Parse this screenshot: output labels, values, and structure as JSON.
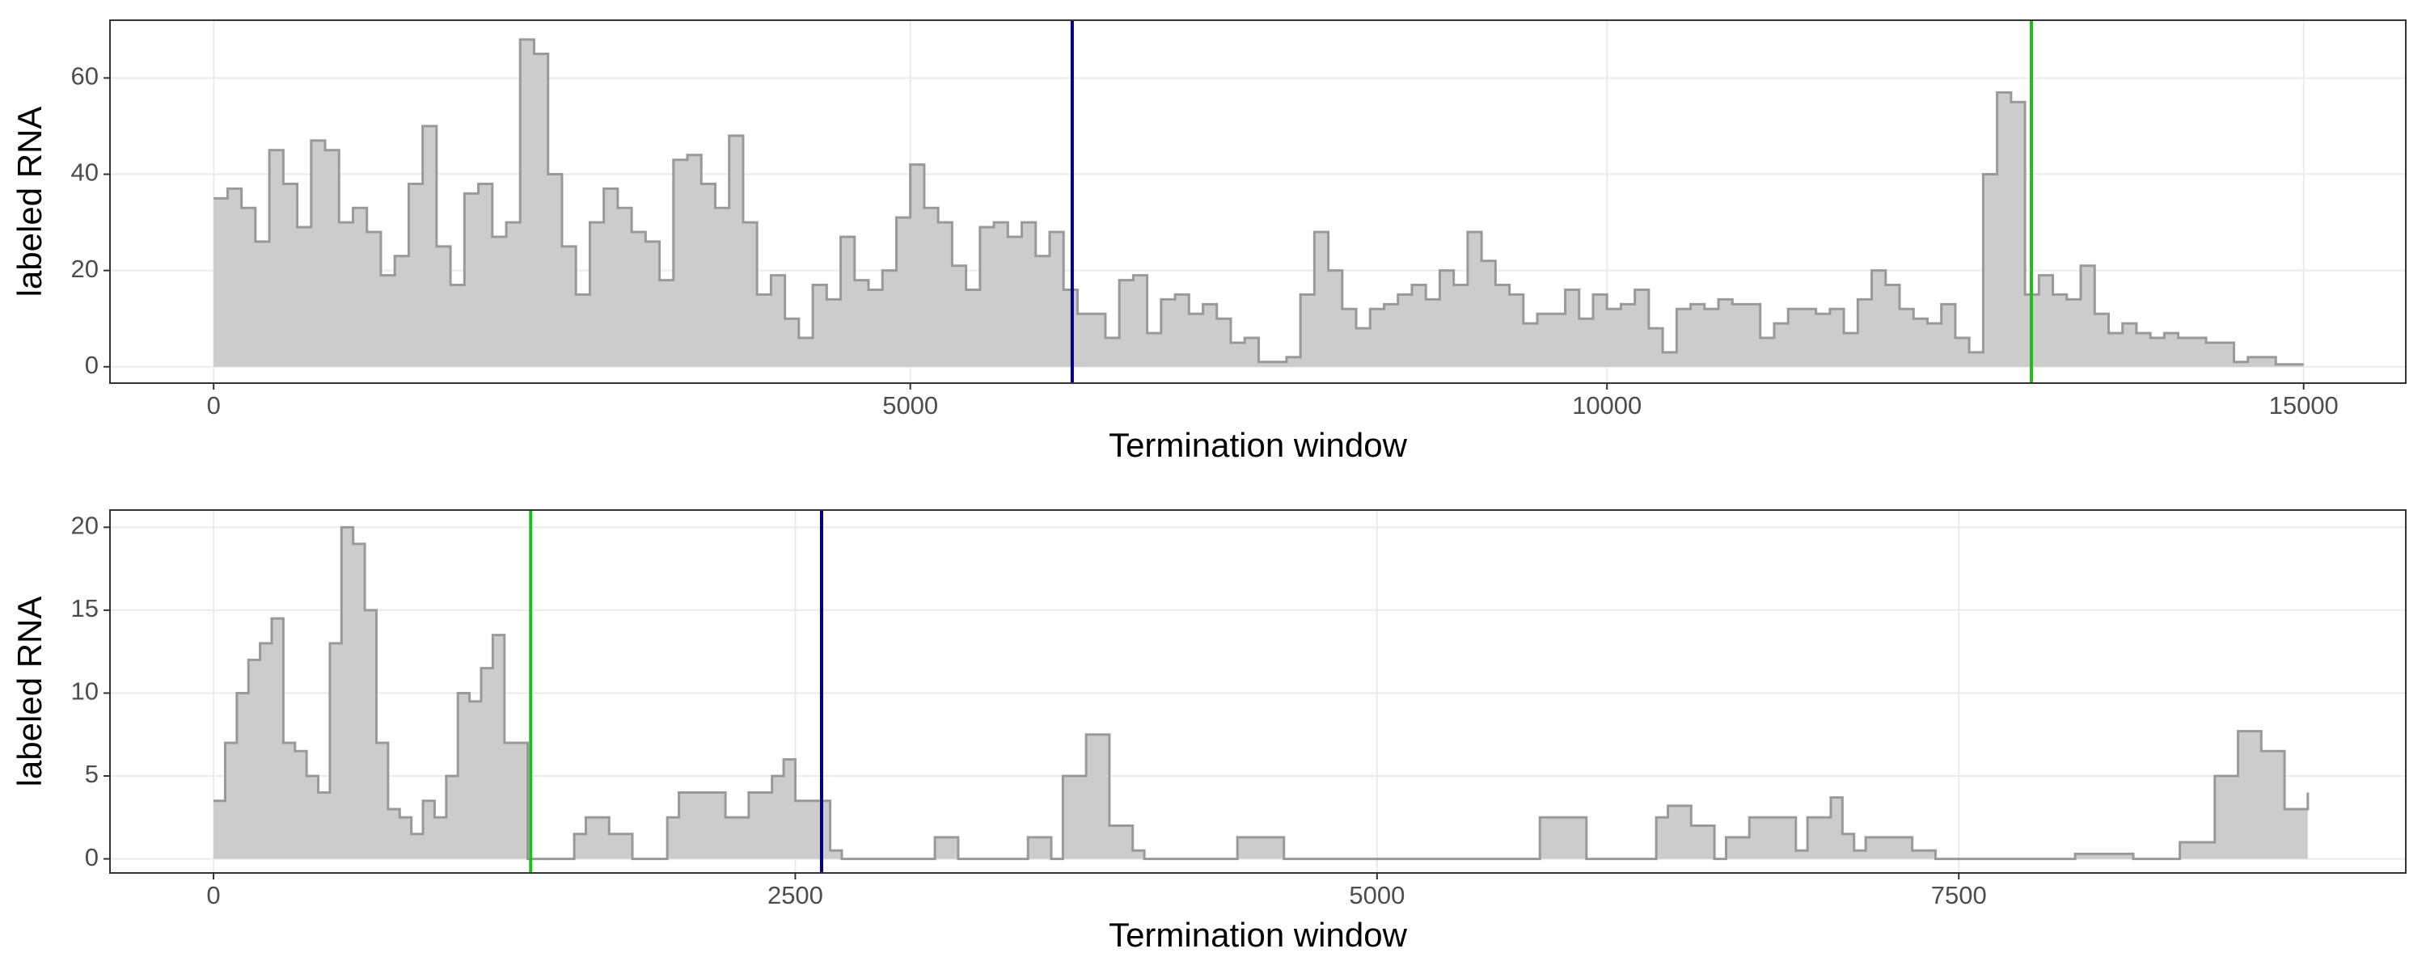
{
  "chart_data": [
    {
      "type": "step-area",
      "ylabel": "labeled RNA",
      "xlabel": "Termination window",
      "fill": "#cccccc",
      "line_color": "#999999",
      "grid": true,
      "xlim": [
        -744,
        15733
      ],
      "ylim": [
        -3.4,
        72
      ],
      "xticks": [
        0,
        5000,
        10000,
        15000
      ],
      "yticks": [
        0,
        20,
        40,
        60
      ],
      "vlines": [
        {
          "value": 6162,
          "color": "#000080"
        },
        {
          "value": 13046,
          "color": "#22bb22"
        }
      ],
      "x": [
        0,
        100,
        200,
        300,
        400,
        500,
        600,
        700,
        800,
        900,
        1000,
        1100,
        1200,
        1300,
        1400,
        1500,
        1600,
        1700,
        1800,
        1900,
        2000,
        2100,
        2200,
        2300,
        2400,
        2500,
        2600,
        2700,
        2800,
        2900,
        3000,
        3100,
        3200,
        3300,
        3400,
        3500,
        3600,
        3700,
        3800,
        3900,
        4000,
        4100,
        4200,
        4300,
        4400,
        4500,
        4600,
        4700,
        4800,
        4900,
        5000,
        5100,
        5200,
        5300,
        5400,
        5500,
        5600,
        5700,
        5800,
        5900,
        6000,
        6100,
        6200,
        6300,
        6400,
        6500,
        6600,
        6700,
        6800,
        6900,
        7000,
        7100,
        7200,
        7300,
        7400,
        7500,
        7600,
        7700,
        7800,
        7900,
        8000,
        8100,
        8200,
        8300,
        8400,
        8500,
        8600,
        8700,
        8800,
        8900,
        9000,
        9100,
        9200,
        9300,
        9400,
        9500,
        9600,
        9700,
        9800,
        9900,
        10000,
        10100,
        10200,
        10300,
        10400,
        10500,
        10600,
        10700,
        10800,
        10900,
        11000,
        11100,
        11200,
        11300,
        11400,
        11500,
        11600,
        11700,
        11800,
        11900,
        12000,
        12100,
        12200,
        12300,
        12400,
        12500,
        12600,
        12700,
        12800,
        12900,
        13000,
        13100,
        13200,
        13300,
        13400,
        13500,
        13600,
        13700,
        13800,
        13900,
        14000,
        14100,
        14200,
        14300,
        14400,
        14500,
        14600,
        14700,
        14800,
        14900,
        15000
      ],
      "values": [
        35,
        37,
        33,
        26,
        45,
        38,
        29,
        47,
        45,
        30,
        33,
        28,
        19,
        23,
        38,
        50,
        25,
        17,
        36,
        38,
        27,
        30,
        68,
        65,
        40,
        25,
        15,
        30,
        37,
        33,
        28,
        26,
        18,
        43,
        44,
        38,
        33,
        48,
        30,
        15,
        19,
        10,
        6,
        17,
        14,
        27,
        18,
        16,
        20,
        31,
        42,
        33,
        30,
        21,
        16,
        29,
        30,
        27,
        30,
        23,
        28,
        16,
        11,
        11,
        6,
        18,
        19,
        7,
        14,
        15,
        11,
        13,
        10,
        5,
        6,
        1,
        1,
        2,
        15,
        28,
        20,
        12,
        8,
        12,
        13,
        15,
        17,
        14,
        20,
        17,
        28,
        22,
        17,
        15,
        9,
        11,
        11,
        16,
        10,
        15,
        12,
        13,
        16,
        8,
        3,
        12,
        13,
        12,
        14,
        13,
        13,
        6,
        9,
        12,
        12,
        11,
        12,
        7,
        14,
        20,
        17,
        12,
        10,
        9,
        13,
        6,
        3,
        40,
        57,
        55,
        15,
        19,
        15,
        14,
        21,
        11,
        7,
        9,
        7,
        6,
        7,
        6,
        6,
        5,
        5,
        1,
        2,
        2,
        0.5,
        0.5,
        0.5
      ]
    },
    {
      "type": "step-area",
      "ylabel": "labeled RNA",
      "xlabel": "Termination window",
      "fill": "#cccccc",
      "line_color": "#999999",
      "grid": true,
      "xlim": [
        -445,
        9421
      ],
      "ylim": [
        -0.85,
        21.04
      ],
      "xticks": [
        0,
        2500,
        5000,
        7500
      ],
      "yticks": [
        0,
        5,
        10,
        15,
        20
      ],
      "vlines": [
        {
          "value": 1363,
          "color": "#22bb22"
        },
        {
          "value": 2613,
          "color": "#000080"
        }
      ],
      "x": [
        0,
        50,
        100,
        150,
        200,
        250,
        300,
        350,
        400,
        450,
        500,
        550,
        600,
        650,
        700,
        750,
        800,
        850,
        900,
        950,
        1000,
        1050,
        1100,
        1150,
        1200,
        1250,
        1300,
        1350,
        1400,
        1500,
        1550,
        1600,
        1700,
        1800,
        1900,
        1950,
        2000,
        2100,
        2200,
        2300,
        2400,
        2450,
        2500,
        2600,
        2650,
        2700,
        3100,
        3200,
        3500,
        3600,
        3650,
        3750,
        3850,
        3950,
        4000,
        4400,
        4600,
        5700,
        5900,
        6200,
        6250,
        6350,
        6450,
        6500,
        6600,
        6800,
        6850,
        6950,
        7000,
        7050,
        7100,
        7300,
        7400,
        8000,
        8250,
        8450,
        8600,
        8700,
        8800,
        8900,
        9000
      ],
      "values": [
        3.5,
        7,
        10,
        12,
        13,
        14.5,
        7,
        6.5,
        5,
        4,
        13,
        20,
        19,
        15,
        7,
        3,
        2.5,
        1.5,
        3.5,
        2.5,
        5,
        10,
        9.5,
        11.5,
        13.5,
        7,
        7,
        0,
        0,
        0,
        1.5,
        2.5,
        1.5,
        0,
        0,
        2.5,
        4,
        4,
        2.5,
        4,
        5,
        6,
        3.5,
        3.5,
        0.5,
        0,
        1.3,
        0,
        1.3,
        0,
        5,
        7.5,
        2,
        0.5,
        0,
        1.3,
        0,
        2.5,
        0,
        2.5,
        3.2,
        2,
        0,
        1.3,
        2.5,
        0.5,
        2.5,
        3.7,
        1.5,
        0.5,
        1.3,
        0.5,
        0,
        0.3,
        0,
        1,
        5,
        7.7,
        6.5,
        3,
        4
      ]
    }
  ]
}
